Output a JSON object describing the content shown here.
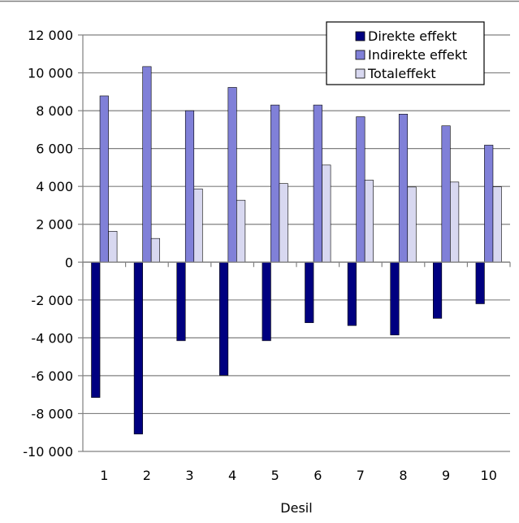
{
  "chart_data": {
    "type": "bar",
    "title": "",
    "xlabel": "Desil",
    "ylabel": "",
    "categories": [
      "1",
      "2",
      "3",
      "4",
      "5",
      "6",
      "7",
      "8",
      "9",
      "10"
    ],
    "ylim": [
      -10000,
      12000
    ],
    "ytick_step": 2000,
    "ytick_labels": [
      "12 000",
      "10 000",
      "8 000",
      "6 000",
      "4 000",
      "2 000",
      "0",
      "-2 000",
      "-4 000",
      "-6 000",
      "-8 000",
      "-10 000"
    ],
    "grid": true,
    "legend_position": "top-right",
    "series": [
      {
        "name": "Direkte effekt",
        "color": "#000080",
        "values": [
          -7150,
          -9080,
          -4150,
          -5980,
          -4150,
          -3200,
          -3350,
          -3850,
          -2970,
          -2200
        ]
      },
      {
        "name": "Indirekte effekt",
        "color": "#8080d8",
        "values": [
          8780,
          10330,
          8000,
          9230,
          8300,
          8300,
          7680,
          7820,
          7200,
          6180
        ]
      },
      {
        "name": "Totaleffekt",
        "color": "#d8d8f0",
        "values": [
          1630,
          1250,
          3870,
          3270,
          4150,
          5130,
          4330,
          3970,
          4230,
          3980
        ]
      }
    ]
  }
}
